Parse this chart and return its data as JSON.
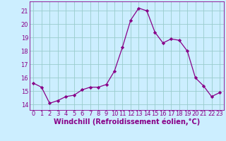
{
  "x": [
    0,
    1,
    2,
    3,
    4,
    5,
    6,
    7,
    8,
    9,
    10,
    11,
    12,
    13,
    14,
    15,
    16,
    17,
    18,
    19,
    20,
    21,
    22,
    23
  ],
  "y": [
    15.6,
    15.3,
    14.1,
    14.3,
    14.6,
    14.7,
    15.1,
    15.3,
    15.3,
    15.5,
    16.5,
    18.3,
    20.3,
    21.2,
    21.0,
    19.4,
    18.6,
    18.9,
    18.8,
    18.0,
    16.0,
    15.4,
    14.6,
    14.9
  ],
  "line_color": "#880088",
  "marker": "D",
  "marker_size": 2.2,
  "bg_color": "#cceeff",
  "grid_color": "#99cccc",
  "xlabel": "Windchill (Refroidissement éolien,°C)",
  "ylabel_ticks": [
    14,
    15,
    16,
    17,
    18,
    19,
    20,
    21
  ],
  "xlim": [
    -0.5,
    23.5
  ],
  "ylim": [
    13.6,
    21.7
  ],
  "xtick_labels": [
    "0",
    "1",
    "2",
    "3",
    "4",
    "5",
    "6",
    "7",
    "8",
    "9",
    "10",
    "11",
    "12",
    "13",
    "14",
    "15",
    "16",
    "17",
    "18",
    "19",
    "20",
    "21",
    "22",
    "23"
  ],
  "tick_color": "#880088",
  "tick_fontsize": 6.0,
  "label_fontsize": 7.0,
  "linewidth": 0.9
}
